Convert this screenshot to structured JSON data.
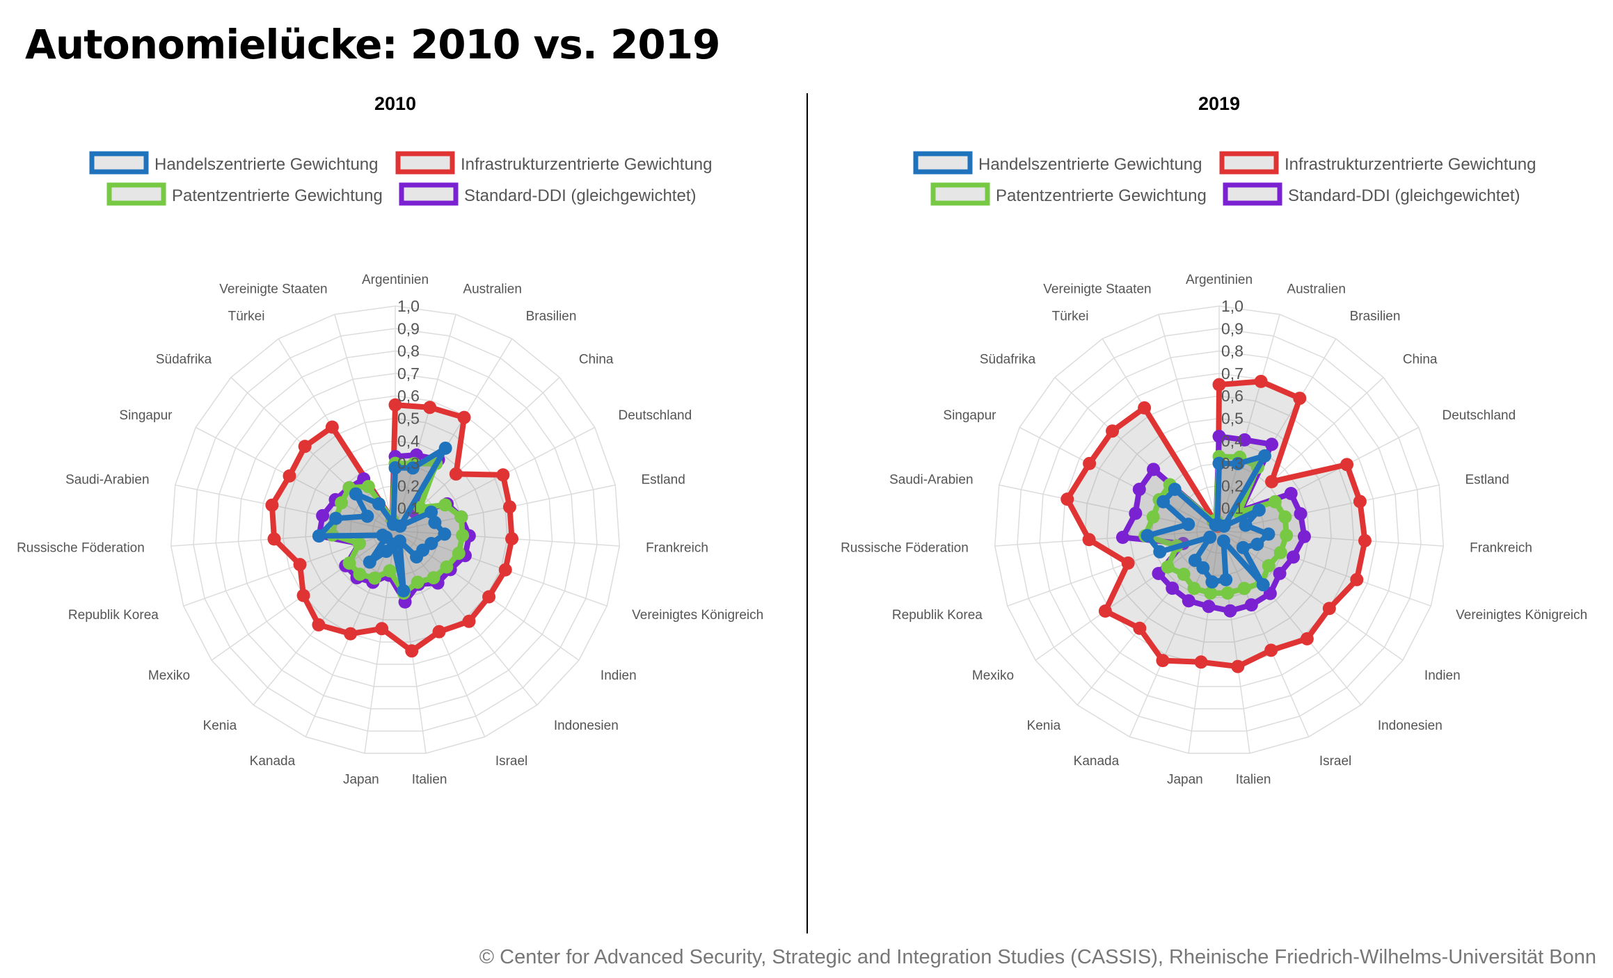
{
  "title": "Autonomielücke: 2010 vs. 2019",
  "footer": "© Center for Advanced Security, Strategic and Integration Studies (CASSIS), Rheinische Friedrich-Wilhelms-Universität Bonn",
  "chart_data": [
    {
      "type": "radar",
      "title": "2010",
      "rlim": [
        0,
        1
      ],
      "tick_labels": [
        "0,1",
        "0,2",
        "0,3",
        "0,4",
        "0,5",
        "0,6",
        "0,7",
        "0,8",
        "0,9",
        "1,0"
      ],
      "grid": true,
      "legend_position": "top",
      "categories": [
        "Argentinien",
        "Australien",
        "Brasilien",
        "China",
        "Deutschland",
        "Estland",
        "Frankreich",
        "Vereinigtes Königreich",
        "Indien",
        "Indonesien",
        "Israel",
        "Italien",
        "Japan",
        "Kanada",
        "Kenia",
        "Mexiko",
        "Republik Korea",
        "Russische Föderation",
        "Saudi-Arabien",
        "Singapur",
        "Südafrika",
        "Türkei",
        "Vereinigte Staaten"
      ],
      "series": [
        {
          "name": "Handelszentrierte Gewichtung",
          "color": "#1f73bd",
          "values": [
            0.28,
            0.29,
            0.43,
            0.03,
            0.18,
            0.18,
            0.22,
            0.17,
            0.15,
            0.15,
            0.05,
            0.27,
            0.06,
            0.1,
            0.18,
            0.05,
            0.06,
            0.34,
            0.27,
            0.14,
            0.24,
            0.14,
            0.03
          ]
        },
        {
          "name": "Infrastrukturzentrierte Gewichtung",
          "color": "#e03434",
          "values": [
            0.56,
            0.57,
            0.59,
            0.37,
            0.54,
            0.52,
            0.52,
            0.52,
            0.51,
            0.52,
            0.49,
            0.54,
            0.44,
            0.5,
            0.54,
            0.5,
            0.45,
            0.54,
            0.56,
            0.53,
            0.55,
            0.54,
            0.05
          ]
        },
        {
          "name": "Patentzentrierte Gewichtung",
          "color": "#77c944",
          "values": [
            0.3,
            0.31,
            0.35,
            0.15,
            0.25,
            0.3,
            0.3,
            0.3,
            0.28,
            0.27,
            0.25,
            0.28,
            0.18,
            0.23,
            0.25,
            0.25,
            0.17,
            0.28,
            0.27,
            0.27,
            0.28,
            0.23,
            0.05
          ]
        },
        {
          "name": "Standard-DDI (gleichgewichtet)",
          "color": "#7a22d2",
          "values": [
            0.33,
            0.35,
            0.37,
            0.12,
            0.26,
            0.3,
            0.33,
            0.33,
            0.3,
            0.3,
            0.26,
            0.32,
            0.2,
            0.25,
            0.27,
            0.27,
            0.17,
            0.34,
            0.33,
            0.3,
            0.28,
            0.27,
            0.05
          ]
        }
      ]
    },
    {
      "type": "radar",
      "title": "2019",
      "rlim": [
        0,
        1
      ],
      "tick_labels": [
        "0,1",
        "0,2",
        "0,3",
        "0,4",
        "0,5",
        "0,6",
        "0,7",
        "0,8",
        "0,9",
        "1,0"
      ],
      "grid": true,
      "legend_position": "top",
      "categories": [
        "Argentinien",
        "Australien",
        "Brasilien",
        "China",
        "Deutschland",
        "Estland",
        "Frankreich",
        "Vereinigtes Königreich",
        "Indien",
        "Indonesien",
        "Israel",
        "Italien",
        "Japan",
        "Kanada",
        "Kenia",
        "Mexiko",
        "Republik Korea",
        "Russische Föderation",
        "Saudi-Arabien",
        "Singapur",
        "Südafrika",
        "Türkei",
        "Vereinigte Staaten"
      ],
      "series": [
        {
          "name": "Handelszentrierte Gewichtung",
          "color": "#1f73bd",
          "values": [
            0.3,
            0.31,
            0.39,
            0.03,
            0.2,
            0.12,
            0.22,
            0.18,
            0.13,
            0.31,
            0.05,
            0.22,
            0.23,
            0.18,
            0.17,
            0.05,
            0.28,
            0.32,
            0.14,
            0.28,
            0.27,
            0.03,
            0.03
          ]
        },
        {
          "name": "Infrastrukturzentrierte Gewichtung",
          "color": "#e03434",
          "values": [
            0.65,
            0.69,
            0.69,
            0.32,
            0.64,
            0.64,
            0.65,
            0.65,
            0.6,
            0.62,
            0.58,
            0.61,
            0.59,
            0.63,
            0.56,
            0.62,
            0.43,
            0.58,
            0.69,
            0.65,
            0.65,
            0.64,
            0.02
          ]
        },
        {
          "name": "Patentzentrierte Gewichtung",
          "color": "#77c944",
          "values": [
            0.33,
            0.34,
            0.33,
            0.12,
            0.28,
            0.3,
            0.3,
            0.29,
            0.27,
            0.3,
            0.28,
            0.28,
            0.28,
            0.28,
            0.25,
            0.28,
            0.2,
            0.33,
            0.3,
            0.3,
            0.3,
            0.05,
            0.05
          ]
        },
        {
          "name": "Standard-DDI (gleichgewichtet)",
          "color": "#7a22d2",
          "values": [
            0.42,
            0.42,
            0.45,
            0.13,
            0.36,
            0.37,
            0.38,
            0.35,
            0.33,
            0.36,
            0.36,
            0.36,
            0.34,
            0.34,
            0.33,
            0.33,
            0.17,
            0.43,
            0.38,
            0.4,
            0.4,
            0.05,
            0.05
          ]
        }
      ]
    }
  ]
}
